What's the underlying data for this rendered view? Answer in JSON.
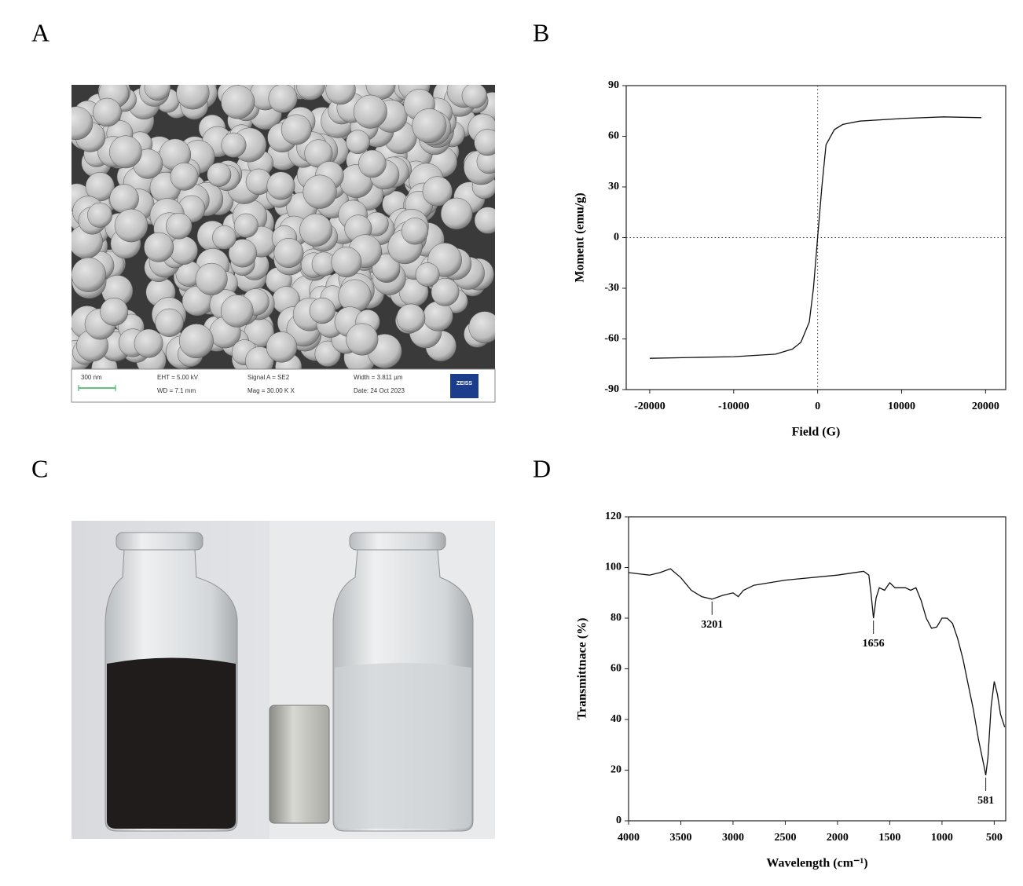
{
  "panels": [
    "A",
    "B",
    "C",
    "D"
  ],
  "sem": {
    "scale": "300 nm",
    "eht": "EHT = 5.00 kV",
    "wd": "WD = 7.1 mm",
    "signal": "Signal A = SE2",
    "mag": "Mag = 30.00 K X",
    "width": "Width = 3.811 µm",
    "date": "Date: 24 Oct 2023",
    "brand": "ZEISS"
  },
  "chart_data": [
    {
      "type": "line",
      "xlabel": "Field (G)",
      "ylabel": "Moment (emu/g)",
      "color": "#111111",
      "zero_lines": true,
      "x": [
        -20000,
        -15000,
        -10000,
        -5000,
        -3000,
        -2000,
        -1000,
        -500,
        0,
        500,
        1000,
        2000,
        3000,
        5000,
        10000,
        15000,
        19500
      ],
      "values": [
        -71.5,
        -71,
        -70.5,
        -69,
        -66,
        -62,
        -50,
        -30,
        0,
        30,
        55,
        64,
        67,
        69,
        70.5,
        71.5,
        71
      ],
      "xlim": [
        -22800,
        22400
      ],
      "xticks": [
        -20000,
        -10000,
        0,
        10000,
        20000
      ],
      "ylim": [
        -90,
        90
      ],
      "yticks": [
        -90,
        -60,
        -30,
        0,
        30,
        60,
        90
      ]
    },
    {
      "type": "line",
      "xlabel": "Wavelength (cm⁻¹)",
      "ylabel": "Transmittnace (%)",
      "color": "#111111",
      "zero_lines": false,
      "x": [
        4000,
        3900,
        3800,
        3700,
        3600,
        3500,
        3400,
        3300,
        3201,
        3100,
        3000,
        2950,
        2900,
        2800,
        2500,
        2000,
        1750,
        1700,
        1680,
        1656,
        1630,
        1600,
        1550,
        1500,
        1450,
        1350,
        1300,
        1250,
        1200,
        1150,
        1100,
        1050,
        1000,
        950,
        900,
        850,
        800,
        750,
        700,
        650,
        600,
        581,
        560,
        530,
        500,
        470,
        440,
        400
      ],
      "values": [
        98,
        97.5,
        97,
        98,
        99.5,
        96,
        91,
        88.5,
        87.5,
        89,
        90,
        88.5,
        91,
        93,
        95,
        97,
        98.5,
        97,
        90,
        80,
        88,
        92,
        91,
        94,
        92,
        92,
        91,
        92,
        87,
        80,
        76,
        76.5,
        80,
        80,
        78,
        72,
        64,
        54,
        44,
        32,
        22,
        18,
        25,
        45,
        55,
        50,
        42,
        37
      ],
      "xlim": [
        4000,
        390
      ],
      "xticks": [
        4000,
        3500,
        3000,
        2500,
        2000,
        1500,
        1000,
        500
      ],
      "ylim": [
        0,
        120
      ],
      "yticks": [
        0,
        20,
        40,
        60,
        80,
        100,
        120
      ],
      "annotations": [
        {
          "label": "3201",
          "x": 3201,
          "y": 87.5
        },
        {
          "label": "1656",
          "x": 1656,
          "y": 80
        },
        {
          "label": "581",
          "x": 581,
          "y": 18
        }
      ]
    }
  ]
}
